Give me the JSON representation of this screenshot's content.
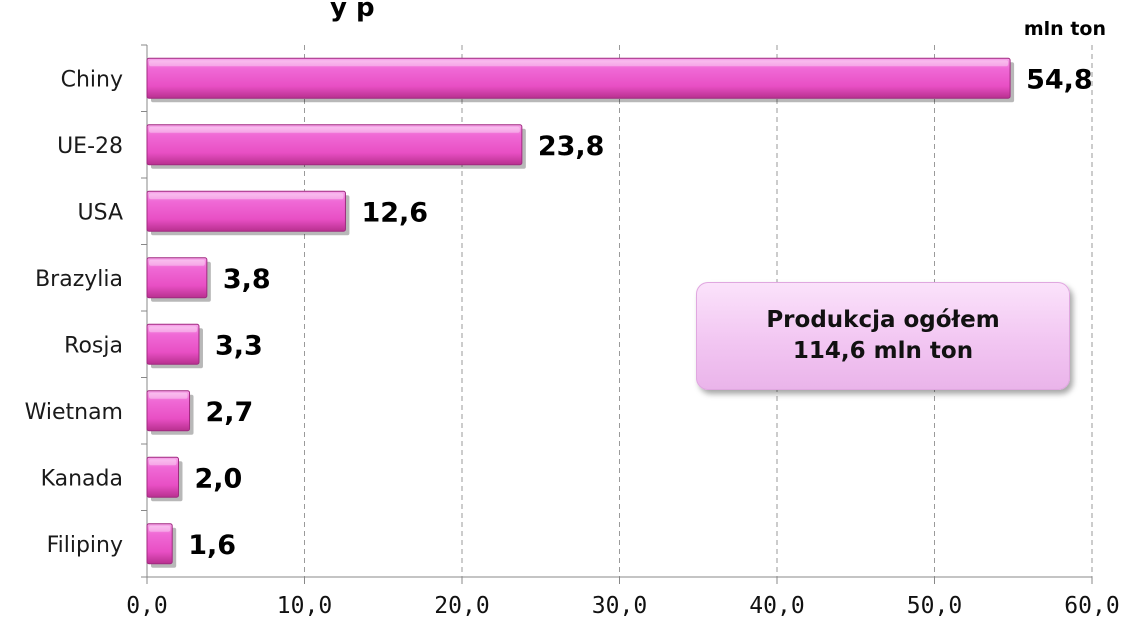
{
  "chart_data": {
    "type": "bar",
    "orientation": "horizontal",
    "title": "y p",
    "unit_label": "mln ton",
    "categories": [
      "Chiny",
      "UE-28",
      "USA",
      "Brazylia",
      "Rosja",
      "Wietnam",
      "Kanada",
      "Filipiny"
    ],
    "values": [
      54.8,
      23.8,
      12.6,
      3.8,
      3.3,
      2.7,
      2.0,
      1.6
    ],
    "value_labels": [
      "54,8",
      "23,8",
      "12,6",
      "3,8",
      "3,3",
      "2,7",
      "2,0",
      "1,6"
    ],
    "xlim": [
      0,
      60
    ],
    "x_ticks": [
      0,
      10,
      20,
      30,
      40,
      50,
      60
    ],
    "x_tick_labels": [
      "0,0",
      "10,0",
      "20,0",
      "30,0",
      "40,0",
      "50,0",
      "60,0"
    ],
    "grid": "vertical dashed",
    "bar_color": "#e84fc4",
    "annotation": {
      "line1": "Produkcja ogółem",
      "line2": "114,6 mln ton"
    }
  }
}
